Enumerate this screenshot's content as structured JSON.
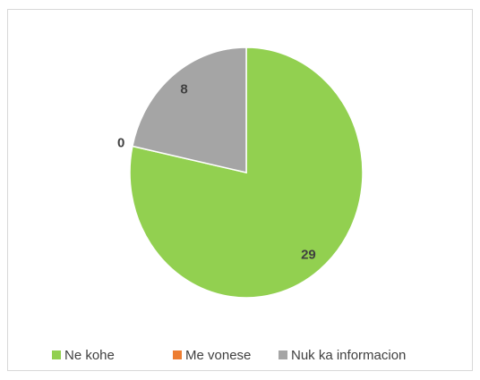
{
  "chart_data": {
    "type": "pie",
    "categories": [
      "Ne kohe",
      "Me vonese",
      "Nuk ka informacion"
    ],
    "values": [
      29,
      0,
      8
    ],
    "colors": [
      "#92d050",
      "#ed7d31",
      "#a5a5a5"
    ]
  }
}
